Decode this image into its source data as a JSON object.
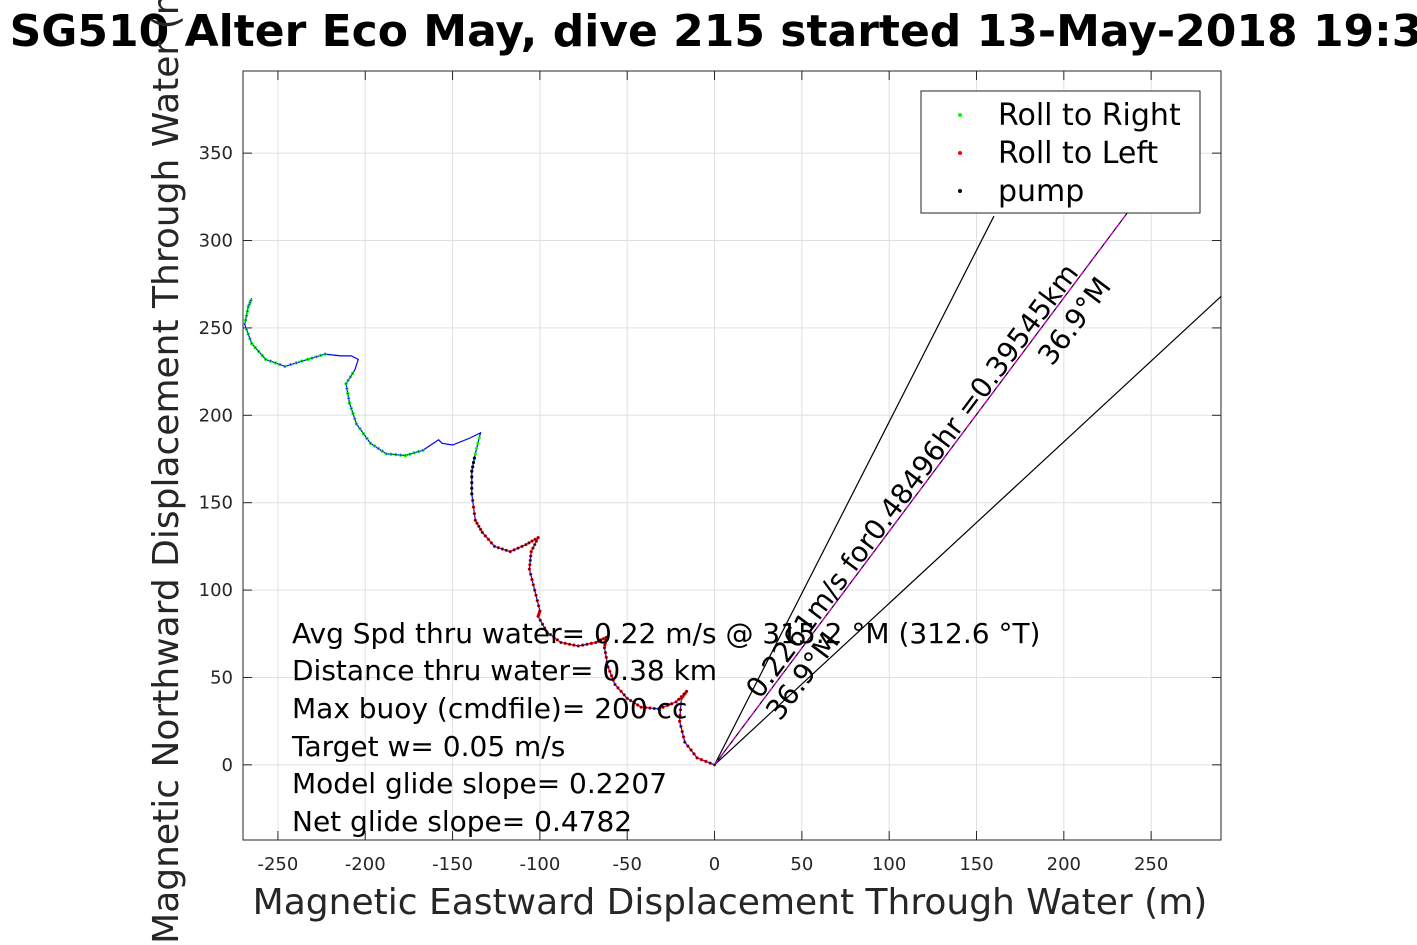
{
  "chart_data": {
    "type": "scatter",
    "title": "SG510 Alter Eco May, dive 215 started 13-May-2018 19:3",
    "xlabel": "Magnetic Eastward Displacement Through Water (m)",
    "ylabel": "Magnetic Northward Displacement Through Water (m)",
    "xlim": [
      -270,
      290
    ],
    "ylim": [
      -43,
      397
    ],
    "xticks": [
      -250,
      -200,
      -150,
      -100,
      -50,
      0,
      50,
      100,
      150,
      200,
      250
    ],
    "yticks": [
      0,
      50,
      100,
      150,
      200,
      250,
      300,
      350
    ],
    "xtick_labels": [
      "-250",
      "-200",
      "-150",
      "-100",
      "-50",
      "0",
      "50",
      "100",
      "150",
      "200",
      "250"
    ],
    "ytick_labels": [
      "0",
      "50",
      "100",
      "150",
      "200",
      "250",
      "300",
      "350"
    ],
    "grid": true,
    "legend_position": "top-right",
    "legend": [
      "Roll to Right",
      "Roll to Left",
      "pump"
    ],
    "colors": {
      "roll_right": "#00ff00",
      "roll_left": "#ff0000",
      "pump": "#000000",
      "track": "#0000ff",
      "heading_line": "#cc00cc",
      "cone": "#000000",
      "grid": "#e0e0e0"
    },
    "track": [
      [
        0,
        0
      ],
      [
        -10,
        4
      ],
      [
        -17,
        13
      ],
      [
        -20,
        25
      ],
      [
        -19,
        38
      ],
      [
        -16,
        42
      ],
      [
        -22,
        36
      ],
      [
        -32,
        32
      ],
      [
        -42,
        33
      ],
      [
        -50,
        38
      ],
      [
        -57,
        46
      ],
      [
        -61,
        56
      ],
      [
        -63,
        67
      ],
      [
        -62,
        73
      ],
      [
        -68,
        70
      ],
      [
        -78,
        68
      ],
      [
        -88,
        70
      ],
      [
        -96,
        76
      ],
      [
        -101,
        85
      ],
      [
        -100,
        88
      ],
      [
        -103,
        100
      ],
      [
        -106,
        112
      ],
      [
        -105,
        122
      ],
      [
        -101,
        130
      ],
      [
        -108,
        126
      ],
      [
        -117,
        122
      ],
      [
        -126,
        125
      ],
      [
        -133,
        133
      ],
      [
        -137,
        140
      ],
      [
        -139,
        155
      ],
      [
        -139,
        168
      ],
      [
        -137,
        178
      ],
      [
        -134,
        190
      ],
      [
        -140,
        187
      ],
      [
        -150,
        183
      ],
      [
        -156,
        184
      ],
      [
        -158,
        186
      ],
      [
        -167,
        180
      ],
      [
        -177,
        177
      ],
      [
        -188,
        178
      ],
      [
        -197,
        184
      ],
      [
        -205,
        195
      ],
      [
        -209,
        207
      ],
      [
        -211,
        218
      ],
      [
        -206,
        226
      ],
      [
        -204,
        232
      ],
      [
        -208,
        234
      ],
      [
        -214,
        234
      ],
      [
        -223,
        235
      ],
      [
        -233,
        232
      ],
      [
        -246,
        228
      ],
      [
        -257,
        232
      ],
      [
        -265,
        241
      ],
      [
        -269,
        252
      ],
      [
        -267,
        262
      ],
      [
        -265,
        267
      ]
    ],
    "heading_line": {
      "x": [
        0,
        238
      ],
      "y": [
        0,
        318
      ]
    },
    "cone_lines": [
      {
        "x": [
          0,
          160
        ],
        "y": [
          0,
          314
        ]
      },
      {
        "x": [
          0,
          290
        ],
        "y": [
          0,
          268
        ]
      }
    ],
    "rotated_text": [
      "0.2261m/s for0.48496hr =0.39545km",
      "36.9°M",
      "36.9°M"
    ],
    "annotations": [
      "Avg Spd thru water=  0.22 m/s @ 315.2 °M (312.6 °T)",
      "Distance thru water=  0.38 km",
      "Max buoy (cmdfile)= 200 cc",
      "Target w= 0.05 m/s",
      "Model glide slope= 0.2207",
      "Net glide slope= 0.4782"
    ]
  }
}
